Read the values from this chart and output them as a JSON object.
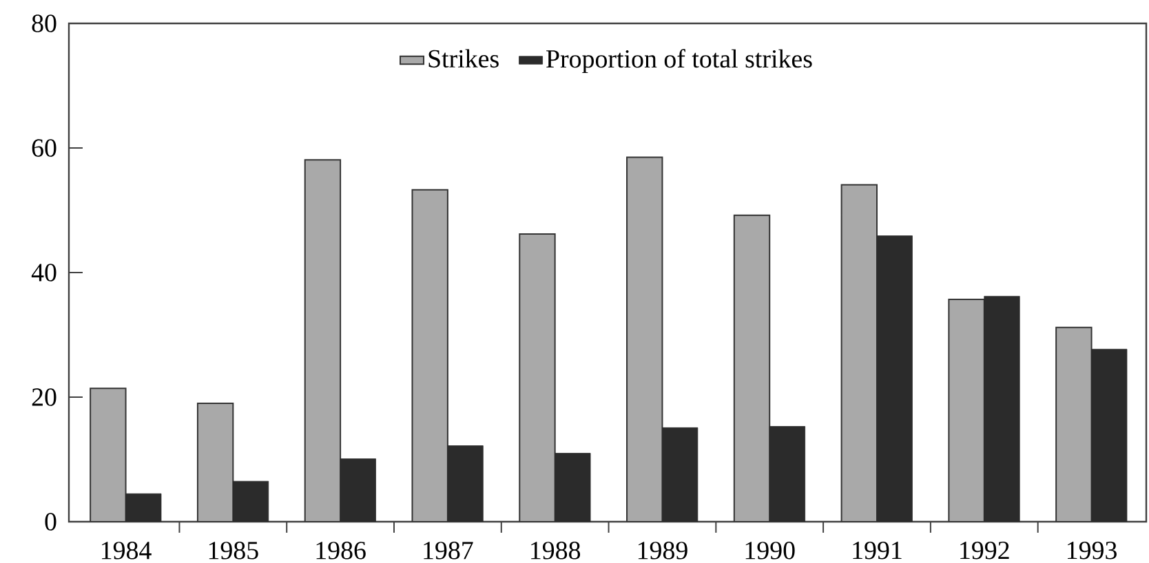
{
  "chart_data": {
    "type": "bar",
    "categories": [
      "1984",
      "1985",
      "1986",
      "1987",
      "1988",
      "1989",
      "1990",
      "1991",
      "1992",
      "1993"
    ],
    "series": [
      {
        "name": "Strikes",
        "color": "#a9a9a9",
        "values": [
          21.4,
          19.0,
          58.1,
          53.3,
          46.2,
          58.5,
          49.2,
          54.1,
          35.7,
          31.2
        ]
      },
      {
        "name": "Proportion of total strikes",
        "color": "#2b2b2b",
        "values": [
          4.5,
          6.5,
          10.1,
          12.2,
          11.0,
          15.1,
          15.3,
          45.9,
          36.2,
          27.7
        ]
      }
    ],
    "ylim": [
      0,
      80
    ],
    "yticks": [
      0,
      20,
      40,
      60,
      80
    ],
    "legend": "top"
  }
}
